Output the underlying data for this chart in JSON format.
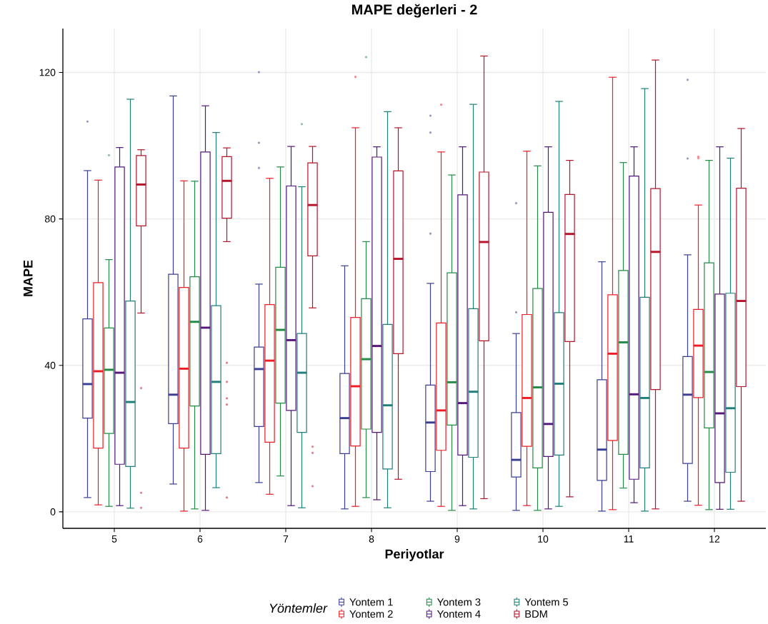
{
  "chart_data": {
    "type": "box",
    "title": "MAPE değerleri - 2",
    "xlabel": "Periyotlar",
    "ylabel": "MAPE",
    "legend_title": "Yöntemler",
    "categories": [
      "5",
      "6",
      "7",
      "8",
      "9",
      "10",
      "11",
      "12"
    ],
    "ylim": [
      -4.5,
      132
    ],
    "yticks": [
      0,
      40,
      80,
      120
    ],
    "grid": true,
    "legend": "bottom",
    "series": [
      {
        "name": "Yontem 1",
        "color": "#3b3f93",
        "boxes": [
          {
            "low": 3.9,
            "q1": 25.6,
            "median": 34.9,
            "q3": 52.7,
            "high": 93.2,
            "outliers": [
              106.6
            ]
          },
          {
            "low": 7.6,
            "q1": 24.1,
            "median": 32.0,
            "q3": 64.9,
            "high": 113.6
          },
          {
            "low": 8.0,
            "q1": 23.3,
            "median": 39.0,
            "q3": 45.0,
            "high": 62.2,
            "outliers": [
              120.1,
              100.8,
              93.9
            ]
          },
          {
            "low": 0.8,
            "q1": 15.9,
            "median": 25.6,
            "q3": 37.8,
            "high": 67.2
          },
          {
            "low": 2.9,
            "q1": 11.0,
            "median": 24.4,
            "q3": 34.6,
            "high": 62.4,
            "outliers": [
              108.2,
              103.6,
              76.0
            ]
          },
          {
            "low": 0.4,
            "q1": 9.5,
            "median": 14.2,
            "q3": 27.1,
            "high": 48.7,
            "outliers": [
              84.3,
              54.5
            ]
          },
          {
            "low": 0.2,
            "q1": 8.6,
            "median": 17.0,
            "q3": 36.1,
            "high": 68.3
          },
          {
            "low": 2.9,
            "q1": 13.2,
            "median": 32.0,
            "q3": 42.4,
            "high": 70.2,
            "outliers": [
              118.0,
              96.5
            ]
          }
        ]
      },
      {
        "name": "Yontem 2",
        "color": "#ee1c25",
        "boxes": [
          {
            "low": 1.9,
            "q1": 17.4,
            "median": 38.4,
            "q3": 62.6,
            "high": 90.6
          },
          {
            "low": 0.2,
            "q1": 17.4,
            "median": 39.1,
            "q3": 61.3,
            "high": 90.4
          },
          {
            "low": 4.8,
            "q1": 19.0,
            "median": 41.3,
            "q3": 56.6,
            "high": 91.1
          },
          {
            "low": 1.5,
            "q1": 18.0,
            "median": 34.3,
            "q3": 53.1,
            "high": 104.9,
            "outliers": [
              118.8
            ]
          },
          {
            "low": 1.5,
            "q1": 16.8,
            "median": 27.7,
            "q3": 51.6,
            "high": 98.3,
            "outliers": [
              111.2
            ]
          },
          {
            "low": 1.7,
            "q1": 17.9,
            "median": 31.1,
            "q3": 53.9,
            "high": 98.5
          },
          {
            "low": 0.6,
            "q1": 19.5,
            "median": 43.2,
            "q3": 59.3,
            "high": 118.7
          },
          {
            "low": 1.8,
            "q1": 31.2,
            "median": 45.4,
            "q3": 55.3,
            "high": 83.8,
            "outliers": [
              97.0,
              96.6
            ]
          }
        ]
      },
      {
        "name": "Yontem 3",
        "color": "#238b45",
        "boxes": [
          {
            "low": 1.5,
            "q1": 21.4,
            "median": 38.8,
            "q3": 50.2,
            "high": 68.9,
            "outliers": [
              97.4
            ]
          },
          {
            "low": 0.8,
            "q1": 28.9,
            "median": 51.9,
            "q3": 64.2,
            "high": 90.3
          },
          {
            "low": 9.8,
            "q1": 29.7,
            "median": 49.7,
            "q3": 66.8,
            "high": 94.2
          },
          {
            "low": 3.9,
            "q1": 22.6,
            "median": 41.7,
            "q3": 58.2,
            "high": 73.8,
            "outliers": [
              124.2
            ]
          },
          {
            "low": 0.4,
            "q1": 23.7,
            "median": 35.4,
            "q3": 65.3,
            "high": 92.0
          },
          {
            "low": 0.4,
            "q1": 12.0,
            "median": 34.0,
            "q3": 61.0,
            "high": 94.5
          },
          {
            "low": 6.5,
            "q1": 15.7,
            "median": 46.3,
            "q3": 65.9,
            "high": 95.4
          },
          {
            "low": 0.6,
            "q1": 22.9,
            "median": 38.2,
            "q3": 68.0,
            "high": 96.0
          }
        ]
      },
      {
        "name": "Yontem 4",
        "color": "#54187a",
        "boxes": [
          {
            "low": 1.7,
            "q1": 13.0,
            "median": 38.0,
            "q3": 94.2,
            "high": 99.5
          },
          {
            "low": 0.4,
            "q1": 15.7,
            "median": 50.3,
            "q3": 98.3,
            "high": 110.9
          },
          {
            "low": 1.7,
            "q1": 27.7,
            "median": 46.9,
            "q3": 89.0,
            "high": 99.8
          },
          {
            "low": 3.3,
            "q1": 21.7,
            "median": 45.3,
            "q3": 96.9,
            "high": 99.7
          },
          {
            "low": 1.7,
            "q1": 15.5,
            "median": 29.7,
            "q3": 86.6,
            "high": 99.7
          },
          {
            "low": 0.8,
            "q1": 15.1,
            "median": 24.0,
            "q3": 81.8,
            "high": 99.7
          },
          {
            "low": 2.5,
            "q1": 8.9,
            "median": 32.1,
            "q3": 91.7,
            "high": 99.7
          },
          {
            "low": 0.7,
            "q1": 8.0,
            "median": 26.9,
            "q3": 59.5,
            "high": 99.7
          }
        ]
      },
      {
        "name": "Yontem 5",
        "color": "#1f7f78",
        "boxes": [
          {
            "low": 1.0,
            "q1": 12.4,
            "median": 30.0,
            "q3": 57.6,
            "high": 112.7
          },
          {
            "low": 6.6,
            "q1": 15.9,
            "median": 35.5,
            "q3": 56.3,
            "high": 103.6
          },
          {
            "low": 1.1,
            "q1": 21.7,
            "median": 38.0,
            "q3": 48.7,
            "high": 88.8,
            "outliers": [
              105.9
            ]
          },
          {
            "low": 1.1,
            "q1": 11.7,
            "median": 29.1,
            "q3": 51.2,
            "high": 109.3
          },
          {
            "low": 0.8,
            "q1": 14.9,
            "median": 32.8,
            "q3": 55.5,
            "high": 111.3
          },
          {
            "low": 1.5,
            "q1": 15.5,
            "median": 35.0,
            "q3": 54.4,
            "high": 112.1
          },
          {
            "low": 0.2,
            "q1": 12.0,
            "median": 31.1,
            "q3": 58.6,
            "high": 115.6
          },
          {
            "low": 0.7,
            "q1": 10.8,
            "median": 28.3,
            "q3": 59.7,
            "high": 96.6
          }
        ]
      },
      {
        "name": "BDM",
        "color": "#b5142b",
        "boxes": [
          {
            "low": 54.3,
            "q1": 78.1,
            "median": 89.4,
            "q3": 97.3,
            "high": 98.9,
            "outliers": [
              33.8,
              5.2,
              1.1
            ]
          },
          {
            "low": 73.8,
            "q1": 80.2,
            "median": 90.4,
            "q3": 97.0,
            "high": 99.4,
            "outliers": [
              40.7,
              35.5,
              31.0,
              29.3,
              3.9
            ]
          },
          {
            "low": 55.7,
            "q1": 69.9,
            "median": 83.8,
            "q3": 95.3,
            "high": 99.8,
            "outliers": [
              17.8,
              16.1,
              7.0
            ]
          },
          {
            "low": 8.9,
            "q1": 43.2,
            "median": 69.1,
            "q3": 93.1,
            "high": 104.9
          },
          {
            "low": 3.6,
            "q1": 46.7,
            "median": 73.7,
            "q3": 92.8,
            "high": 124.5
          },
          {
            "low": 4.1,
            "q1": 46.5,
            "median": 75.9,
            "q3": 86.7,
            "high": 96.0
          },
          {
            "low": 0.8,
            "q1": 33.4,
            "median": 71.0,
            "q3": 88.3,
            "high": 123.4
          },
          {
            "low": 2.9,
            "q1": 34.2,
            "median": 57.6,
            "q3": 88.4,
            "high": 104.7
          }
        ]
      }
    ]
  }
}
